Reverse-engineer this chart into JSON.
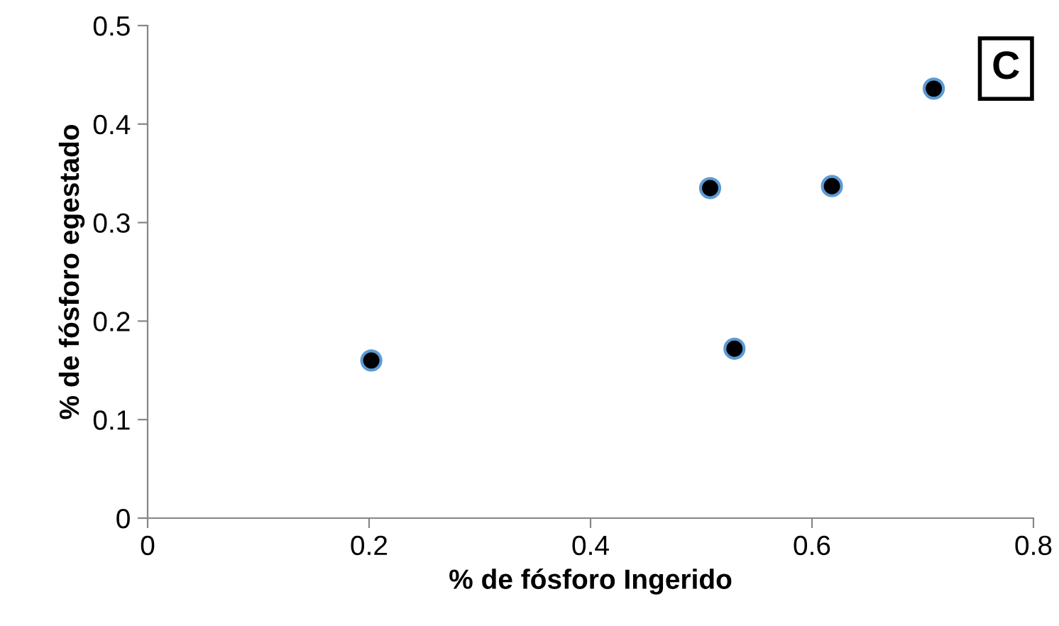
{
  "chart_data": {
    "type": "scatter",
    "xlabel": "% de fósforo Ingerido",
    "ylabel": "% de fósforo egestado",
    "x": [
      0.202,
      0.508,
      0.53,
      0.618,
      0.71
    ],
    "series": [
      {
        "color": "#000000",
        "values": [
          0.16,
          0.335,
          0.172,
          0.337,
          0.436
        ]
      }
    ],
    "xlim": [
      0,
      0.8
    ],
    "xticks": [
      {
        "value": 0,
        "label": "0"
      },
      0.2,
      0.4,
      0.6,
      0.8
    ],
    "ylim": [
      0,
      0.5
    ],
    "yticks": [
      {
        "value": 0,
        "label": "0"
      },
      0.1,
      0.2,
      0.3,
      0.4,
      0.5
    ],
    "marker": "circle",
    "grid": false,
    "legend": false,
    "annotations": [
      "C"
    ]
  }
}
